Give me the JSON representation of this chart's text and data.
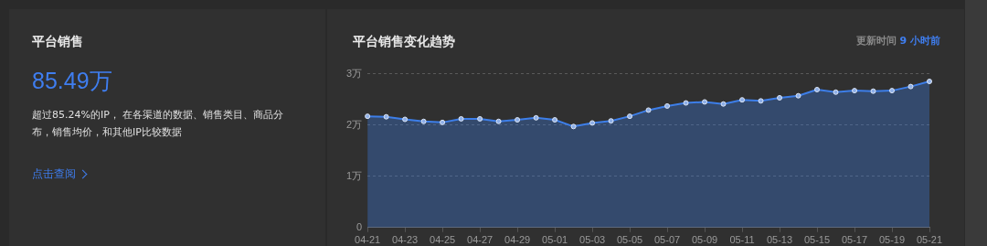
{
  "chart_data": [
    {
      "type": "other",
      "title": "平台销售",
      "annotations": [
        "85.49万",
        "超过85.24%的IP， 在各渠道的数据、销售类目、商品分布，销售均价，和其他IP比较数据",
        "点击查阅"
      ]
    },
    {
      "type": "area",
      "title": "平台销售变化趋势",
      "annotations": [
        "更新时间",
        "9 小时前"
      ],
      "categories": [
        "04-21",
        null,
        "04-23",
        null,
        "04-25",
        null,
        "04-27",
        null,
        "04-29",
        null,
        "05-01",
        null,
        "05-03",
        null,
        "05-05",
        null,
        "05-07",
        null,
        "05-09",
        null,
        "05-11",
        null,
        "05-13",
        null,
        "05-15",
        null,
        "05-17",
        null,
        "05-19",
        null,
        "05-21"
      ],
      "series": [
        {
          "color": "#3d7ee8",
          "values": [
            2.17,
            2.16,
            2.11,
            2.07,
            2.05,
            2.12,
            2.12,
            2.07,
            2.1,
            2.14,
            2.1,
            1.97,
            2.04,
            2.08,
            2.17,
            2.29,
            2.37,
            2.43,
            2.45,
            2.41,
            2.49,
            2.47,
            2.53,
            2.57,
            2.69,
            2.64,
            2.67,
            2.66,
            2.67,
            2.75,
            2.85
          ]
        }
      ],
      "ylim": [
        0,
        3
      ],
      "yticks": [
        0,
        {
          "value": 1,
          "label": "1万"
        },
        {
          "value": 2,
          "label": "2万"
        },
        {
          "value": 3,
          "label": "3万"
        }
      ],
      "grid": "y",
      "legend": false,
      "marker": "circle",
      "line_style": "solid"
    }
  ]
}
